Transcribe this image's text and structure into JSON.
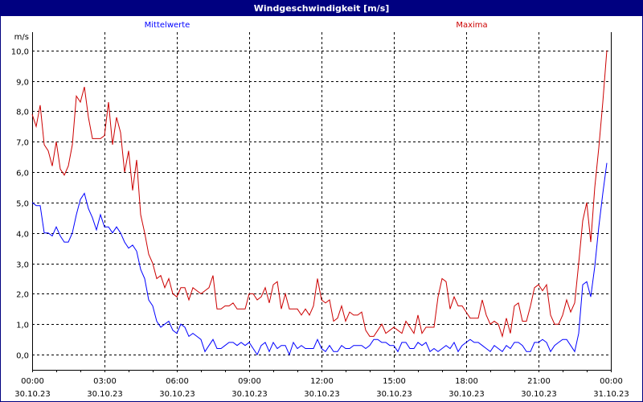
{
  "window": {
    "title": "Windgeschwindigkeit [m/s]"
  },
  "chart_data": {
    "type": "line",
    "title": "Windgeschwindigkeit [m/s]",
    "ylabel": "m/s",
    "xlabel": "",
    "ylim": [
      -0.5,
      10.6
    ],
    "xlim_hours": [
      0,
      24
    ],
    "interval_minutes": 10,
    "grid": true,
    "y_ticks": [
      {
        "value": 0,
        "label": "0,0"
      },
      {
        "value": 1,
        "label": "1,0"
      },
      {
        "value": 2,
        "label": "2,0"
      },
      {
        "value": 3,
        "label": "3,0"
      },
      {
        "value": 4,
        "label": "4,0"
      },
      {
        "value": 5,
        "label": "5,0"
      },
      {
        "value": 6,
        "label": "6,0"
      },
      {
        "value": 7,
        "label": "7,0"
      },
      {
        "value": 8,
        "label": "8,0"
      },
      {
        "value": 9,
        "label": "9,0"
      },
      {
        "value": 10,
        "label": "10,0"
      }
    ],
    "x_ticks": [
      {
        "hour": 0,
        "time": "00:00",
        "date": "30.10.23"
      },
      {
        "hour": 3,
        "time": "03:00",
        "date": "30.10.23"
      },
      {
        "hour": 6,
        "time": "06:00",
        "date": "30.10.23"
      },
      {
        "hour": 9,
        "time": "09:00",
        "date": "30.10.23"
      },
      {
        "hour": 12,
        "time": "12:00",
        "date": "30.10.23"
      },
      {
        "hour": 15,
        "time": "15:00",
        "date": "30.10.23"
      },
      {
        "hour": 18,
        "time": "18:00",
        "date": "30.10.23"
      },
      {
        "hour": 21,
        "time": "21:00",
        "date": "30.10.23"
      },
      {
        "hour": 24,
        "time": "00:00",
        "date": "31.10.23"
      }
    ],
    "series": [
      {
        "name": "Mittelwerte",
        "color": "#0000ff",
        "legend": "top-left",
        "values": [
          5.0,
          4.9,
          4.9,
          4.0,
          4.0,
          3.9,
          4.2,
          3.9,
          3.7,
          3.7,
          4.0,
          4.6,
          5.1,
          5.3,
          4.8,
          4.5,
          4.1,
          4.6,
          4.2,
          4.2,
          4.0,
          4.2,
          4.0,
          3.7,
          3.5,
          3.6,
          3.4,
          2.8,
          2.5,
          1.8,
          1.6,
          1.1,
          0.9,
          1.0,
          1.1,
          0.8,
          0.7,
          1.0,
          0.9,
          0.6,
          0.7,
          0.6,
          0.5,
          0.1,
          0.3,
          0.5,
          0.2,
          0.2,
          0.3,
          0.4,
          0.4,
          0.3,
          0.4,
          0.3,
          0.4,
          0.2,
          0.0,
          0.3,
          0.4,
          0.1,
          0.4,
          0.2,
          0.3,
          0.3,
          0.0,
          0.4,
          0.2,
          0.3,
          0.2,
          0.2,
          0.2,
          0.5,
          0.2,
          0.1,
          0.3,
          0.1,
          0.1,
          0.3,
          0.2,
          0.2,
          0.3,
          0.3,
          0.3,
          0.2,
          0.3,
          0.5,
          0.5,
          0.4,
          0.4,
          0.3,
          0.3,
          0.1,
          0.4,
          0.4,
          0.2,
          0.2,
          0.4,
          0.3,
          0.4,
          0.1,
          0.2,
          0.1,
          0.2,
          0.3,
          0.2,
          0.4,
          0.1,
          0.3,
          0.4,
          0.5,
          0.4,
          0.4,
          0.3,
          0.2,
          0.1,
          0.3,
          0.2,
          0.1,
          0.3,
          0.2,
          0.4,
          0.4,
          0.3,
          0.1,
          0.1,
          0.4,
          0.4,
          0.5,
          0.4,
          0.1,
          0.3,
          0.4,
          0.5,
          0.5,
          0.3,
          0.1,
          0.7,
          2.3,
          2.4,
          1.9,
          2.9,
          4.2,
          5.3,
          6.3
        ]
      },
      {
        "name": "Maxima",
        "color": "#cc0000",
        "legend": "top-right",
        "values": [
          7.9,
          7.5,
          8.2,
          6.9,
          6.7,
          6.2,
          7.0,
          6.1,
          5.9,
          6.2,
          6.9,
          8.5,
          8.3,
          8.8,
          7.8,
          7.1,
          7.1,
          7.1,
          7.2,
          8.3,
          6.9,
          7.8,
          7.3,
          6.0,
          6.7,
          5.4,
          6.4,
          4.6,
          4.0,
          3.3,
          3.0,
          2.5,
          2.6,
          2.2,
          2.5,
          2.0,
          1.9,
          2.2,
          2.2,
          1.8,
          2.2,
          2.1,
          2.0,
          2.1,
          2.2,
          2.6,
          1.5,
          1.5,
          1.6,
          1.6,
          1.7,
          1.5,
          1.5,
          1.5,
          2.0,
          2.0,
          1.8,
          1.9,
          2.2,
          1.7,
          2.3,
          2.4,
          1.5,
          2.0,
          1.5,
          1.5,
          1.5,
          1.3,
          1.5,
          1.3,
          1.6,
          2.5,
          1.8,
          1.7,
          1.8,
          1.1,
          1.2,
          1.6,
          1.1,
          1.4,
          1.3,
          1.3,
          1.4,
          0.8,
          0.6,
          0.6,
          0.8,
          1.0,
          0.7,
          0.8,
          0.9,
          0.8,
          0.7,
          1.1,
          0.9,
          0.7,
          1.3,
          0.7,
          0.9,
          0.9,
          0.9,
          1.9,
          2.5,
          2.4,
          1.5,
          1.9,
          1.6,
          1.6,
          1.4,
          1.2,
          1.2,
          1.2,
          1.8,
          1.3,
          1.0,
          1.1,
          1.0,
          0.6,
          1.2,
          0.7,
          1.6,
          1.7,
          1.1,
          1.1,
          1.6,
          2.2,
          2.3,
          2.1,
          2.3,
          1.3,
          1.0,
          1.0,
          1.3,
          1.8,
          1.4,
          1.7,
          3.0,
          4.4,
          5.0,
          3.7,
          5.5,
          6.8,
          8.3,
          10.0
        ]
      }
    ]
  }
}
